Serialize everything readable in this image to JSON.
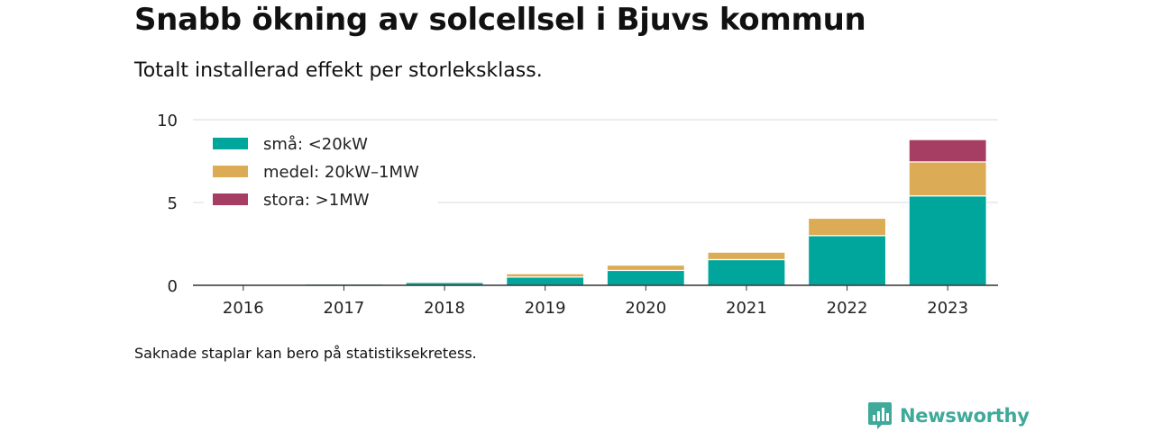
{
  "title": "Snabb ökning av solcellsel i Bjuvs kommun",
  "subtitle": "Totalt installerad effekt per storleksklass.",
  "footnote": "Saknade staplar kan bero på statistiksekretess.",
  "brand": {
    "name": "Newsworthy",
    "icon": "newsworthy-logo-icon",
    "color": "#3fa99a"
  },
  "chart_data": {
    "type": "bar",
    "stacked": true,
    "categories": [
      "2016",
      "2017",
      "2018",
      "2019",
      "2020",
      "2021",
      "2022",
      "2023"
    ],
    "series": [
      {
        "name": "små: <20kW",
        "color": "#00a69c",
        "values": [
          0.02,
          0.08,
          0.18,
          0.5,
          0.9,
          1.55,
          3.0,
          5.4
        ]
      },
      {
        "name": "medel: 20kW–1MW",
        "color": "#dbac55",
        "values": [
          0,
          0,
          0.02,
          0.2,
          0.32,
          0.45,
          1.05,
          2.05
        ]
      },
      {
        "name": "stora: >1MW",
        "color": "#a63d63",
        "values": [
          0,
          0,
          0,
          0,
          0,
          0,
          0,
          1.35
        ]
      }
    ],
    "yticks": [
      0,
      5,
      10
    ],
    "ylim": [
      0,
      10
    ],
    "grid": true,
    "legend": "top-left"
  }
}
